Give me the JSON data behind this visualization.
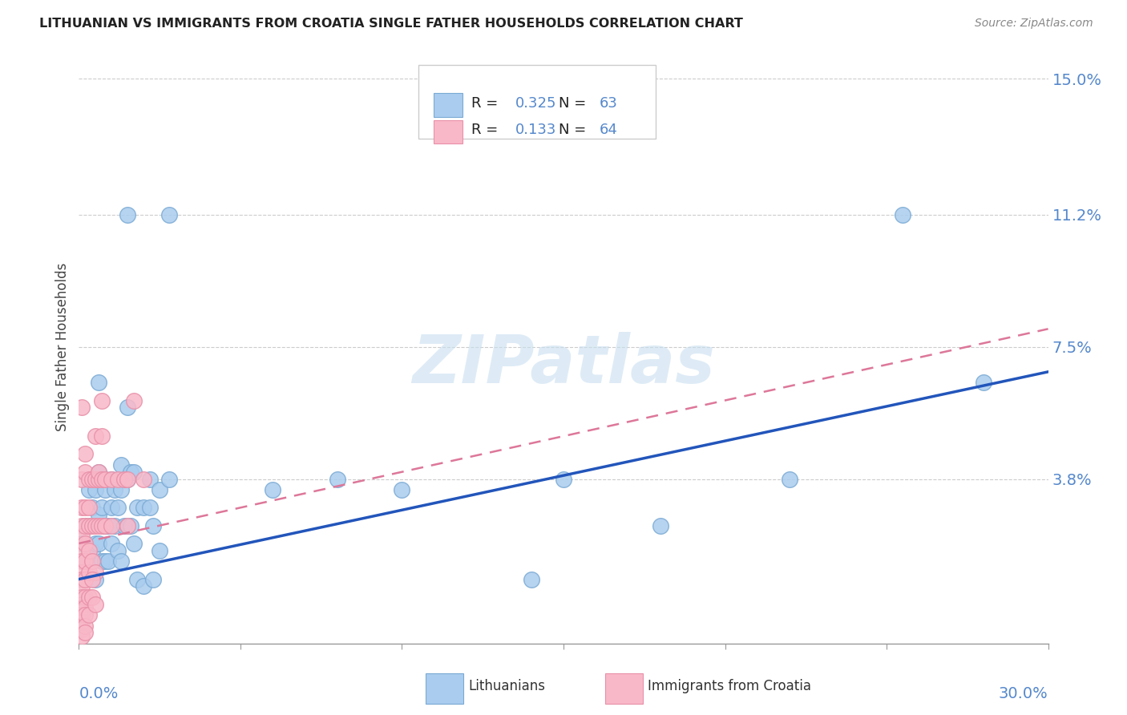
{
  "title": "LITHUANIAN VS IMMIGRANTS FROM CROATIA SINGLE FATHER HOUSEHOLDS CORRELATION CHART",
  "source": "Source: ZipAtlas.com",
  "ylabel": "Single Father Households",
  "xmin": 0.0,
  "xmax": 0.3,
  "ymin": -0.008,
  "ymax": 0.158,
  "ytick_vals": [
    0.038,
    0.075,
    0.112,
    0.15
  ],
  "ytick_labels": [
    "3.8%",
    "7.5%",
    "11.2%",
    "15.0%"
  ],
  "xtick_vals": [
    0.0,
    0.05,
    0.1,
    0.15,
    0.2,
    0.25,
    0.3
  ],
  "blue_R": 0.325,
  "blue_N": 63,
  "pink_R": 0.133,
  "pink_N": 64,
  "blue_scatter": [
    [
      0.001,
      0.02
    ],
    [
      0.002,
      0.015
    ],
    [
      0.002,
      0.025
    ],
    [
      0.003,
      0.025
    ],
    [
      0.003,
      0.035
    ],
    [
      0.004,
      0.018
    ],
    [
      0.004,
      0.03
    ],
    [
      0.005,
      0.01
    ],
    [
      0.005,
      0.02
    ],
    [
      0.005,
      0.035
    ],
    [
      0.006,
      0.02
    ],
    [
      0.006,
      0.028
    ],
    [
      0.006,
      0.04
    ],
    [
      0.006,
      0.065
    ],
    [
      0.007,
      0.015
    ],
    [
      0.007,
      0.03
    ],
    [
      0.008,
      0.015
    ],
    [
      0.008,
      0.025
    ],
    [
      0.008,
      0.035
    ],
    [
      0.008,
      0.038
    ],
    [
      0.009,
      0.015
    ],
    [
      0.009,
      0.025
    ],
    [
      0.01,
      0.02
    ],
    [
      0.01,
      0.03
    ],
    [
      0.01,
      0.038
    ],
    [
      0.011,
      0.025
    ],
    [
      0.011,
      0.035
    ],
    [
      0.012,
      0.018
    ],
    [
      0.012,
      0.03
    ],
    [
      0.013,
      0.015
    ],
    [
      0.013,
      0.035
    ],
    [
      0.013,
      0.042
    ],
    [
      0.014,
      0.025
    ],
    [
      0.014,
      0.038
    ],
    [
      0.015,
      0.025
    ],
    [
      0.015,
      0.038
    ],
    [
      0.015,
      0.058
    ],
    [
      0.015,
      0.112
    ],
    [
      0.016,
      0.025
    ],
    [
      0.016,
      0.04
    ],
    [
      0.017,
      0.02
    ],
    [
      0.017,
      0.04
    ],
    [
      0.018,
      0.01
    ],
    [
      0.018,
      0.03
    ],
    [
      0.02,
      0.008
    ],
    [
      0.02,
      0.03
    ],
    [
      0.022,
      0.03
    ],
    [
      0.022,
      0.038
    ],
    [
      0.023,
      0.01
    ],
    [
      0.023,
      0.025
    ],
    [
      0.025,
      0.018
    ],
    [
      0.025,
      0.035
    ],
    [
      0.028,
      0.038
    ],
    [
      0.028,
      0.112
    ],
    [
      0.06,
      0.035
    ],
    [
      0.08,
      0.038
    ],
    [
      0.1,
      0.035
    ],
    [
      0.14,
      0.01
    ],
    [
      0.15,
      0.038
    ],
    [
      0.18,
      0.025
    ],
    [
      0.22,
      0.038
    ],
    [
      0.255,
      0.112
    ],
    [
      0.28,
      0.065
    ]
  ],
  "pink_scatter": [
    [
      0.001,
      0.058
    ],
    [
      0.001,
      0.038
    ],
    [
      0.001,
      0.03
    ],
    [
      0.001,
      0.025
    ],
    [
      0.001,
      0.022
    ],
    [
      0.001,
      0.018
    ],
    [
      0.001,
      0.015
    ],
    [
      0.001,
      0.012
    ],
    [
      0.001,
      0.01
    ],
    [
      0.001,
      0.008
    ],
    [
      0.001,
      0.005
    ],
    [
      0.001,
      0.003
    ],
    [
      0.001,
      0.002
    ],
    [
      0.001,
      0.001
    ],
    [
      0.001,
      0.0
    ],
    [
      0.001,
      -0.002
    ],
    [
      0.001,
      -0.004
    ],
    [
      0.001,
      -0.006
    ],
    [
      0.002,
      0.04
    ],
    [
      0.002,
      0.03
    ],
    [
      0.002,
      0.025
    ],
    [
      0.002,
      0.02
    ],
    [
      0.002,
      0.015
    ],
    [
      0.002,
      0.01
    ],
    [
      0.002,
      0.005
    ],
    [
      0.002,
      0.002
    ],
    [
      0.002,
      0.0
    ],
    [
      0.002,
      -0.003
    ],
    [
      0.002,
      -0.005
    ],
    [
      0.003,
      0.038
    ],
    [
      0.003,
      0.025
    ],
    [
      0.003,
      0.018
    ],
    [
      0.003,
      0.012
    ],
    [
      0.003,
      0.005
    ],
    [
      0.003,
      0.0
    ],
    [
      0.004,
      0.038
    ],
    [
      0.004,
      0.025
    ],
    [
      0.004,
      0.015
    ],
    [
      0.004,
      0.005
    ],
    [
      0.005,
      0.038
    ],
    [
      0.005,
      0.025
    ],
    [
      0.005,
      0.05
    ],
    [
      0.005,
      0.012
    ],
    [
      0.006,
      0.038
    ],
    [
      0.006,
      0.025
    ],
    [
      0.006,
      0.04
    ],
    [
      0.007,
      0.038
    ],
    [
      0.007,
      0.025
    ],
    [
      0.007,
      0.06
    ],
    [
      0.007,
      0.05
    ],
    [
      0.008,
      0.038
    ],
    [
      0.008,
      0.025
    ],
    [
      0.01,
      0.038
    ],
    [
      0.01,
      0.025
    ],
    [
      0.012,
      0.038
    ],
    [
      0.014,
      0.038
    ],
    [
      0.015,
      0.025
    ],
    [
      0.015,
      0.038
    ],
    [
      0.017,
      0.06
    ],
    [
      0.02,
      0.038
    ],
    [
      0.002,
      0.045
    ],
    [
      0.003,
      0.03
    ],
    [
      0.004,
      0.01
    ],
    [
      0.005,
      0.003
    ]
  ],
  "blue_line_x": [
    0.0,
    0.3
  ],
  "blue_line_y": [
    0.01,
    0.068
  ],
  "pink_line_x": [
    0.0,
    0.3
  ],
  "pink_line_y": [
    0.02,
    0.08
  ],
  "scatter_size": 200,
  "blue_fill": "#aaccee",
  "blue_edge": "#7aaad4",
  "pink_fill": "#f9b8c8",
  "pink_edge": "#e890a8",
  "blue_line_color": "#2255bb",
  "pink_line_color": "#dd7799",
  "watermark_color": "#c8dff0",
  "grid_color": "#cccccc",
  "ytick_color": "#5588cc",
  "xtick_color": "#5588cc",
  "background_color": "#ffffff"
}
